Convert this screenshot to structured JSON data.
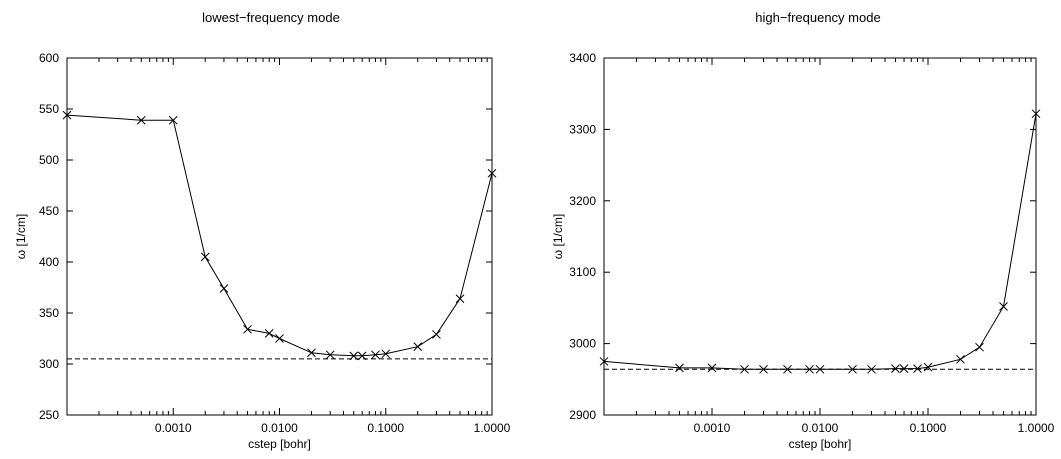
{
  "chart_data": [
    {
      "type": "line",
      "title": "lowest−frequency mode",
      "xlabel": "cstep [bohr]",
      "ylabel": "ω [1/cm]",
      "xscale": "log",
      "xlim": [
        0.0001,
        1.0
      ],
      "ylim": [
        250,
        600
      ],
      "x_tick_labels": [
        "0.0010",
        "0.0100",
        "0.1000",
        "1.0000"
      ],
      "x_tick_values": [
        0.001,
        0.01,
        0.1,
        1.0
      ],
      "y_tick_values": [
        250,
        300,
        350,
        400,
        450,
        500,
        550,
        600
      ],
      "grid": false,
      "series": [
        {
          "line_style": "solid",
          "marker": "x",
          "x": [
            0.0001,
            0.0005,
            0.001,
            0.002,
            0.003,
            0.005,
            0.008,
            0.01,
            0.02,
            0.03,
            0.05,
            0.06,
            0.08,
            0.1,
            0.2,
            0.3,
            0.5,
            1.0
          ],
          "y": [
            544,
            539,
            539,
            405,
            374,
            334,
            330,
            325,
            311,
            309,
            308,
            308,
            309,
            310,
            317,
            329,
            364,
            487
          ]
        }
      ],
      "reference_line": {
        "y": 305,
        "line_style": "dashed"
      }
    },
    {
      "type": "line",
      "title": "high−frequency mode",
      "xlabel": "cstep [bohr]",
      "ylabel": "ω [1/cm]",
      "xscale": "log",
      "xlim": [
        0.0001,
        1.0
      ],
      "ylim": [
        2900,
        3400
      ],
      "x_tick_labels": [
        "0.0010",
        "0.0100",
        "0.1000",
        "1.0000"
      ],
      "x_tick_values": [
        0.001,
        0.01,
        0.1,
        1.0
      ],
      "y_tick_values": [
        2900,
        3000,
        3100,
        3200,
        3300,
        3400
      ],
      "grid": false,
      "series": [
        {
          "line_style": "solid",
          "marker": "x",
          "x": [
            0.0001,
            0.0005,
            0.001,
            0.002,
            0.003,
            0.005,
            0.008,
            0.01,
            0.02,
            0.03,
            0.05,
            0.06,
            0.08,
            0.1,
            0.2,
            0.3,
            0.5,
            1.0
          ],
          "y": [
            2975,
            2966,
            2966,
            2964,
            2964,
            2964,
            2964,
            2964,
            2964,
            2964,
            2965,
            2965,
            2965,
            2967,
            2978,
            2995,
            3052,
            3322
          ]
        }
      ],
      "reference_line": {
        "y": 2964,
        "line_style": "dashed"
      }
    }
  ]
}
